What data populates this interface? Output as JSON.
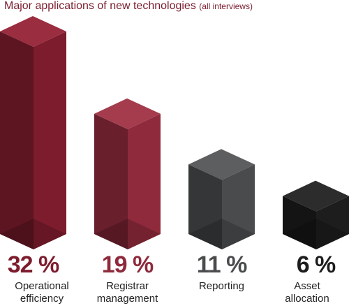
{
  "title": "Major applications of new technologies",
  "subtitle": "(all interviews)",
  "colors": {
    "title": "#7b1e2f",
    "bar_dark_red": "#7d1c2c",
    "bar_red": "#8e2a3b",
    "bar_gray": "#4a4b4c",
    "bar_black": "#1d1d1d"
  },
  "chart_data": {
    "type": "bar",
    "title": "Major applications of new technologies",
    "subtitle": "(all interviews)",
    "categories": [
      "Operational efficiency",
      "Registrar management",
      "Reporting",
      "Asset allocation"
    ],
    "values": [
      32,
      19,
      11,
      6
    ],
    "value_labels": [
      "32 %",
      "19 %",
      "11 %",
      "6 %"
    ],
    "category_labels": [
      "Operational\nefficiency",
      "Registrar\nmanagement",
      "Reporting",
      "Asset\nallocation"
    ],
    "unit": "%",
    "grid": false,
    "legend": "none"
  }
}
